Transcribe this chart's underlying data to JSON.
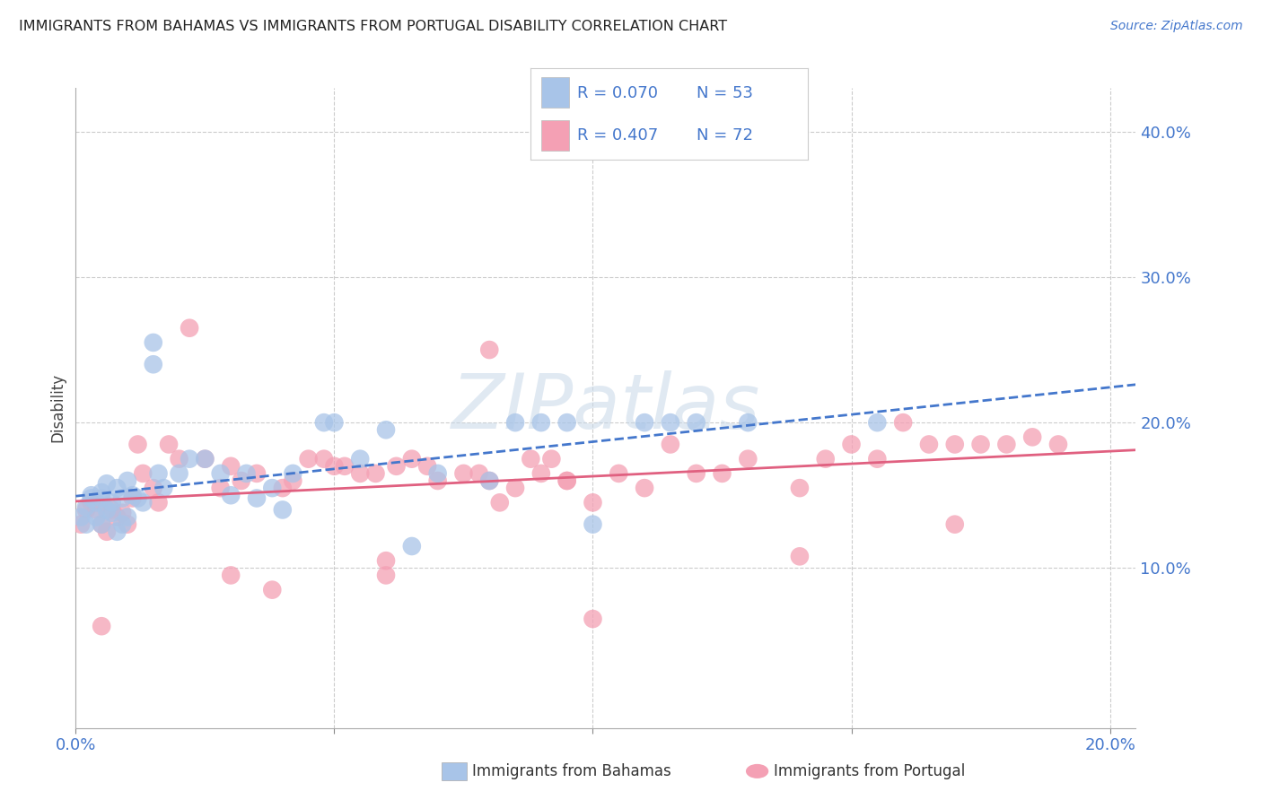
{
  "title": "IMMIGRANTS FROM BAHAMAS VS IMMIGRANTS FROM PORTUGAL DISABILITY CORRELATION CHART",
  "source": "Source: ZipAtlas.com",
  "ylabel": "Disability",
  "xlim": [
    0.0,
    0.205
  ],
  "ylim": [
    -0.01,
    0.43
  ],
  "bahamas_color": "#a8c4e8",
  "portugal_color": "#f4a0b4",
  "bahamas_trend_color": "#4477cc",
  "portugal_trend_color": "#e06080",
  "bahamas_R": 0.07,
  "bahamas_N": 53,
  "portugal_R": 0.407,
  "portugal_N": 72,
  "legend_text_color": "#4477cc",
  "watermark_color": "#d0dce8",
  "grid_color": "#cccccc",
  "tick_color": "#4477cc",
  "bahamas_x": [
    0.001,
    0.002,
    0.002,
    0.003,
    0.003,
    0.004,
    0.004,
    0.005,
    0.005,
    0.005,
    0.006,
    0.006,
    0.007,
    0.007,
    0.008,
    0.008,
    0.009,
    0.009,
    0.01,
    0.01,
    0.011,
    0.012,
    0.013,
    0.015,
    0.015,
    0.016,
    0.017,
    0.02,
    0.022,
    0.025,
    0.028,
    0.03,
    0.033,
    0.035,
    0.038,
    0.04,
    0.042,
    0.048,
    0.05,
    0.055,
    0.06,
    0.065,
    0.07,
    0.08,
    0.085,
    0.09,
    0.095,
    0.1,
    0.11,
    0.115,
    0.12,
    0.13,
    0.155
  ],
  "bahamas_y": [
    0.135,
    0.13,
    0.142,
    0.15,
    0.148,
    0.135,
    0.145,
    0.152,
    0.148,
    0.13,
    0.14,
    0.158,
    0.138,
    0.145,
    0.125,
    0.155,
    0.13,
    0.148,
    0.135,
    0.16,
    0.15,
    0.148,
    0.145,
    0.255,
    0.24,
    0.165,
    0.155,
    0.165,
    0.175,
    0.175,
    0.165,
    0.15,
    0.165,
    0.148,
    0.155,
    0.14,
    0.165,
    0.2,
    0.2,
    0.175,
    0.195,
    0.115,
    0.165,
    0.16,
    0.2,
    0.2,
    0.2,
    0.13,
    0.2,
    0.2,
    0.2,
    0.2,
    0.2
  ],
  "portugal_x": [
    0.001,
    0.002,
    0.003,
    0.004,
    0.005,
    0.006,
    0.007,
    0.008,
    0.009,
    0.01,
    0.011,
    0.012,
    0.013,
    0.015,
    0.016,
    0.018,
    0.02,
    0.022,
    0.025,
    0.028,
    0.03,
    0.032,
    0.035,
    0.038,
    0.04,
    0.042,
    0.045,
    0.048,
    0.05,
    0.052,
    0.055,
    0.058,
    0.06,
    0.062,
    0.065,
    0.068,
    0.07,
    0.075,
    0.078,
    0.08,
    0.082,
    0.085,
    0.088,
    0.09,
    0.092,
    0.095,
    0.1,
    0.105,
    0.11,
    0.115,
    0.12,
    0.125,
    0.13,
    0.14,
    0.145,
    0.15,
    0.155,
    0.16,
    0.165,
    0.17,
    0.175,
    0.18,
    0.185,
    0.19,
    0.03,
    0.06,
    0.08,
    0.1,
    0.14,
    0.17,
    0.005,
    0.095
  ],
  "portugal_y": [
    0.13,
    0.14,
    0.145,
    0.14,
    0.13,
    0.125,
    0.14,
    0.135,
    0.138,
    0.13,
    0.148,
    0.185,
    0.165,
    0.155,
    0.145,
    0.185,
    0.175,
    0.265,
    0.175,
    0.155,
    0.17,
    0.16,
    0.165,
    0.085,
    0.155,
    0.16,
    0.175,
    0.175,
    0.17,
    0.17,
    0.165,
    0.165,
    0.105,
    0.17,
    0.175,
    0.17,
    0.16,
    0.165,
    0.165,
    0.16,
    0.145,
    0.155,
    0.175,
    0.165,
    0.175,
    0.16,
    0.145,
    0.165,
    0.155,
    0.185,
    0.165,
    0.165,
    0.175,
    0.155,
    0.175,
    0.185,
    0.175,
    0.2,
    0.185,
    0.13,
    0.185,
    0.185,
    0.19,
    0.185,
    0.095,
    0.095,
    0.25,
    0.065,
    0.108,
    0.185,
    0.06,
    0.16
  ]
}
